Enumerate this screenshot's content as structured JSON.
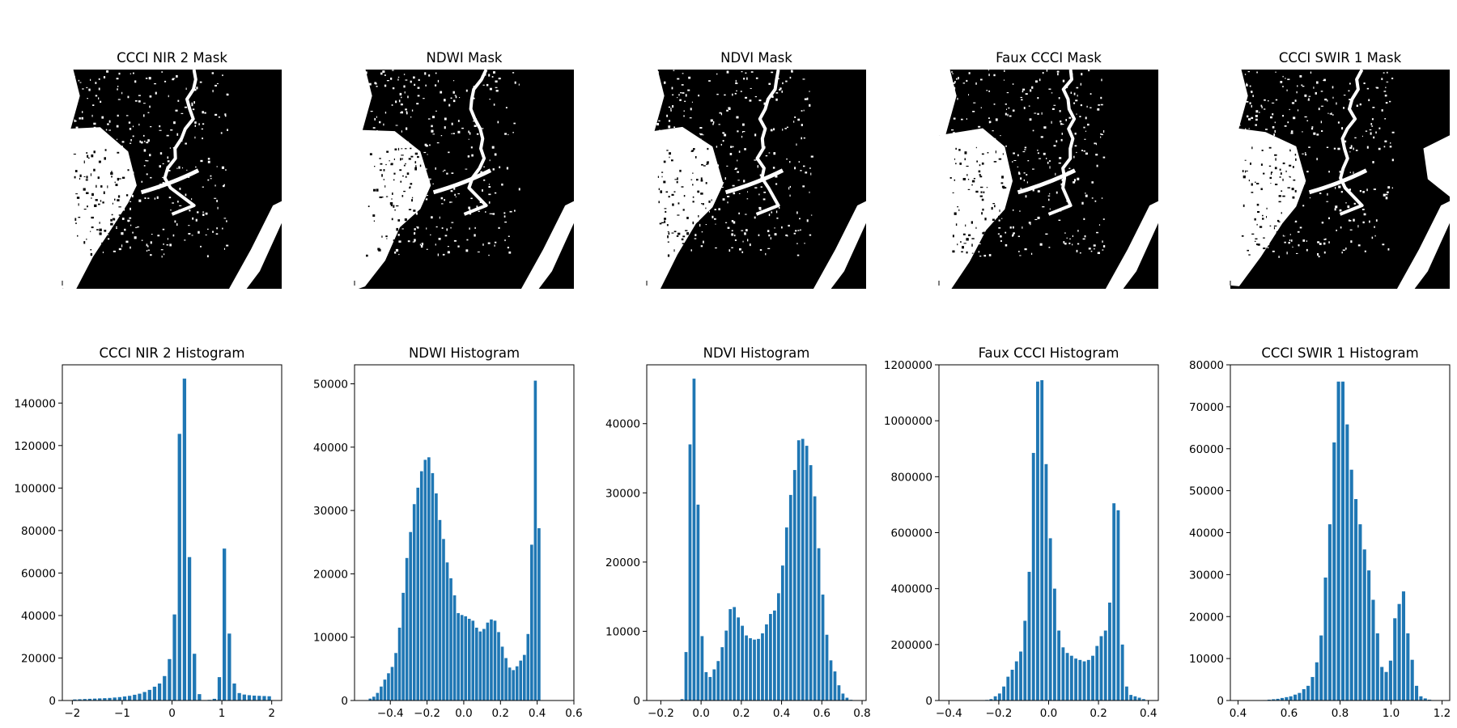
{
  "chart_data": [
    {
      "type": "image",
      "title": "CCCI NIR 2 Mask",
      "colormap": [
        "#000000",
        "#ffffff"
      ],
      "feature_seed": 11
    },
    {
      "type": "image",
      "title": "NDWI Mask",
      "colormap": [
        "#000000",
        "#ffffff"
      ],
      "feature_seed": 23
    },
    {
      "type": "image",
      "title": "NDVI Mask",
      "colormap": [
        "#000000",
        "#ffffff"
      ],
      "feature_seed": 37
    },
    {
      "type": "image",
      "title": "Faux CCCI Mask",
      "colormap": [
        "#000000",
        "#ffffff"
      ],
      "feature_seed": 41
    },
    {
      "type": "image",
      "title": "CCCI SWIR 1 Mask",
      "colormap": [
        "#000000",
        "#ffffff"
      ],
      "feature_seed": 53
    },
    {
      "type": "bar",
      "title": "CCCI NIR 2 Histogram",
      "bar_color": "#1f77b4",
      "xlim": [
        -2.2,
        2.2
      ],
      "ylim": [
        0,
        158000
      ],
      "xticks": [
        -2,
        -1,
        0,
        1,
        2
      ],
      "xtick_labels": [
        "−2",
        "−1",
        "0",
        "1",
        "2"
      ],
      "yticks": [
        0,
        20000,
        40000,
        60000,
        80000,
        100000,
        120000,
        140000
      ],
      "ytick_labels": [
        "0",
        "20000",
        "40000",
        "60000",
        "80000",
        "100000",
        "120000",
        "140000"
      ],
      "bar_width": 0.07,
      "x": [
        -1.95,
        -1.85,
        -1.75,
        -1.65,
        -1.55,
        -1.45,
        -1.35,
        -1.25,
        -1.15,
        -1.05,
        -0.95,
        -0.85,
        -0.75,
        -0.65,
        -0.55,
        -0.45,
        -0.35,
        -0.25,
        -0.15,
        -0.05,
        0.05,
        0.15,
        0.25,
        0.35,
        0.45,
        0.55,
        0.65,
        0.75,
        0.85,
        0.95,
        1.05,
        1.15,
        1.25,
        1.35,
        1.45,
        1.55,
        1.65,
        1.75,
        1.85,
        1.95
      ],
      "values": [
        500,
        600,
        700,
        800,
        900,
        1000,
        1100,
        1200,
        1400,
        1600,
        1900,
        2200,
        2700,
        3200,
        4000,
        5000,
        6500,
        8000,
        11500,
        19500,
        40500,
        125500,
        151500,
        67500,
        22000,
        3000,
        200,
        300,
        800,
        11000,
        71500,
        31500,
        8000,
        3500,
        2800,
        2500,
        2300,
        2200,
        2100,
        2000
      ]
    },
    {
      "type": "bar",
      "title": "NDWI Histogram",
      "bar_color": "#1f77b4",
      "xlim": [
        -0.595,
        0.6
      ],
      "ylim": [
        0,
        53000
      ],
      "xticks": [
        -0.4,
        -0.2,
        0.0,
        0.2,
        0.4,
        0.6
      ],
      "xtick_labels": [
        "−0.4",
        "−0.2",
        "0.0",
        "0.2",
        "0.4",
        "0.6"
      ],
      "yticks": [
        0,
        10000,
        20000,
        30000,
        40000,
        50000
      ],
      "ytick_labels": [
        "0",
        "10000",
        "20000",
        "30000",
        "40000",
        "50000"
      ],
      "bar_width": 0.016,
      "x": [
        -0.51,
        -0.49,
        -0.47,
        -0.45,
        -0.43,
        -0.41,
        -0.39,
        -0.37,
        -0.35,
        -0.33,
        -0.31,
        -0.29,
        -0.27,
        -0.25,
        -0.23,
        -0.21,
        -0.19,
        -0.17,
        -0.15,
        -0.13,
        -0.11,
        -0.09,
        -0.07,
        -0.05,
        -0.03,
        -0.01,
        0.01,
        0.03,
        0.05,
        0.07,
        0.09,
        0.11,
        0.13,
        0.15,
        0.17,
        0.19,
        0.21,
        0.23,
        0.25,
        0.27,
        0.29,
        0.31,
        0.33,
        0.35,
        0.37,
        0.39,
        0.41,
        0.43
      ],
      "values": [
        300,
        600,
        1200,
        2200,
        3300,
        4300,
        5300,
        7500,
        11500,
        17000,
        22500,
        26600,
        31000,
        33600,
        36200,
        38000,
        38400,
        35900,
        32700,
        28500,
        25500,
        21800,
        19300,
        16600,
        13800,
        13500,
        13300,
        12900,
        12600,
        11500,
        10900,
        11300,
        12300,
        12800,
        12600,
        10800,
        8500,
        6700,
        5200,
        4800,
        5400,
        6300,
        7200,
        10500,
        24600,
        50500,
        27200,
        0
      ]
    },
    {
      "type": "bar",
      "title": "NDVI Histogram",
      "bar_color": "#1f77b4",
      "xlim": [
        -0.27,
        0.82
      ],
      "ylim": [
        0,
        48500
      ],
      "xticks": [
        -0.2,
        0.0,
        0.2,
        0.4,
        0.6,
        0.8
      ],
      "xtick_labels": [
        "−0.2",
        "0.0",
        "0.2",
        "0.4",
        "0.6",
        "0.8"
      ],
      "yticks": [
        0,
        10000,
        20000,
        30000,
        40000
      ],
      "ytick_labels": [
        "0",
        "10000",
        "20000",
        "30000",
        "40000"
      ],
      "bar_width": 0.015,
      "x": [
        -0.095,
        -0.075,
        -0.055,
        -0.035,
        -0.015,
        0.005,
        0.025,
        0.045,
        0.065,
        0.085,
        0.105,
        0.125,
        0.145,
        0.165,
        0.185,
        0.205,
        0.225,
        0.245,
        0.265,
        0.285,
        0.305,
        0.325,
        0.345,
        0.365,
        0.385,
        0.405,
        0.425,
        0.445,
        0.465,
        0.485,
        0.505,
        0.525,
        0.545,
        0.565,
        0.585,
        0.605,
        0.625,
        0.645,
        0.665,
        0.685,
        0.705,
        0.725,
        0.745
      ],
      "values": [
        200,
        7000,
        37000,
        46500,
        28300,
        9300,
        4100,
        3400,
        4500,
        5700,
        7700,
        10100,
        13200,
        13500,
        12000,
        10800,
        9400,
        9000,
        8800,
        8900,
        9700,
        11000,
        12500,
        13000,
        15500,
        19500,
        25000,
        29700,
        33300,
        37600,
        37800,
        36800,
        34000,
        29500,
        22000,
        15300,
        9500,
        5800,
        4200,
        2200,
        1000,
        400,
        100
      ]
    },
    {
      "type": "bar",
      "title": "Faux CCCI Histogram",
      "bar_color": "#1f77b4",
      "xlim": [
        -0.44,
        0.44
      ],
      "ylim": [
        0,
        1200000
      ],
      "xticks": [
        -0.4,
        -0.2,
        0.0,
        0.2,
        0.4
      ],
      "xtick_labels": [
        "−0.4",
        "−0.2",
        "0.0",
        "0.2",
        "0.4"
      ],
      "yticks": [
        0,
        200000,
        400000,
        600000,
        800000,
        1000000,
        1200000
      ],
      "ytick_labels": [
        "0",
        "200000",
        "400000",
        "600000",
        "800000",
        "1000000",
        "1200000"
      ],
      "bar_width": 0.0125,
      "x": [
        -0.265,
        -0.248,
        -0.231,
        -0.214,
        -0.197,
        -0.18,
        -0.163,
        -0.146,
        -0.129,
        -0.112,
        -0.095,
        -0.078,
        -0.061,
        -0.044,
        -0.027,
        -0.01,
        0.007,
        0.024,
        0.041,
        0.058,
        0.075,
        0.092,
        0.109,
        0.126,
        0.143,
        0.16,
        0.177,
        0.194,
        0.211,
        0.228,
        0.245,
        0.262,
        0.279,
        0.296,
        0.313,
        0.33,
        0.347,
        0.364,
        0.381
      ],
      "values": [
        1000,
        2000,
        5000,
        15000,
        25000,
        50000,
        85000,
        110000,
        140000,
        175000,
        285000,
        460000,
        885000,
        1140000,
        1145000,
        845000,
        580000,
        400000,
        250000,
        190000,
        170000,
        160000,
        150000,
        145000,
        140000,
        145000,
        160000,
        195000,
        230000,
        250000,
        350000,
        705000,
        680000,
        200000,
        50000,
        20000,
        15000,
        10000,
        5000
      ]
    },
    {
      "type": "bar",
      "title": "CCCI SWIR 1 Histogram",
      "bar_color": "#1f77b4",
      "xlim": [
        0.37,
        1.23
      ],
      "ylim": [
        0,
        80000
      ],
      "xticks": [
        0.4,
        0.6,
        0.8,
        1.0,
        1.2
      ],
      "xtick_labels": [
        "0.4",
        "0.6",
        "0.8",
        "1.0",
        "1.2"
      ],
      "yticks": [
        0,
        10000,
        20000,
        30000,
        40000,
        50000,
        60000,
        70000,
        80000
      ],
      "ytick_labels": [
        "0",
        "10000",
        "20000",
        "30000",
        "40000",
        "50000",
        "60000",
        "70000",
        "80000"
      ],
      "bar_width": 0.013,
      "x": [
        0.505,
        0.522,
        0.539,
        0.556,
        0.573,
        0.59,
        0.607,
        0.624,
        0.641,
        0.658,
        0.675,
        0.692,
        0.709,
        0.726,
        0.743,
        0.76,
        0.777,
        0.794,
        0.811,
        0.828,
        0.845,
        0.862,
        0.879,
        0.896,
        0.913,
        0.93,
        0.947,
        0.964,
        0.981,
        0.998,
        1.015,
        1.032,
        1.049,
        1.066,
        1.083,
        1.1,
        1.117,
        1.134,
        1.151
      ],
      "values": [
        100,
        200,
        300,
        400,
        600,
        800,
        1000,
        1400,
        1800,
        2700,
        3500,
        5600,
        9100,
        15500,
        29300,
        42000,
        61500,
        76000,
        76000,
        65800,
        55000,
        48000,
        42000,
        36000,
        31000,
        24000,
        16000,
        8000,
        6800,
        9500,
        19600,
        23000,
        26000,
        16000,
        9700,
        3500,
        1000,
        500,
        200
      ]
    }
  ]
}
